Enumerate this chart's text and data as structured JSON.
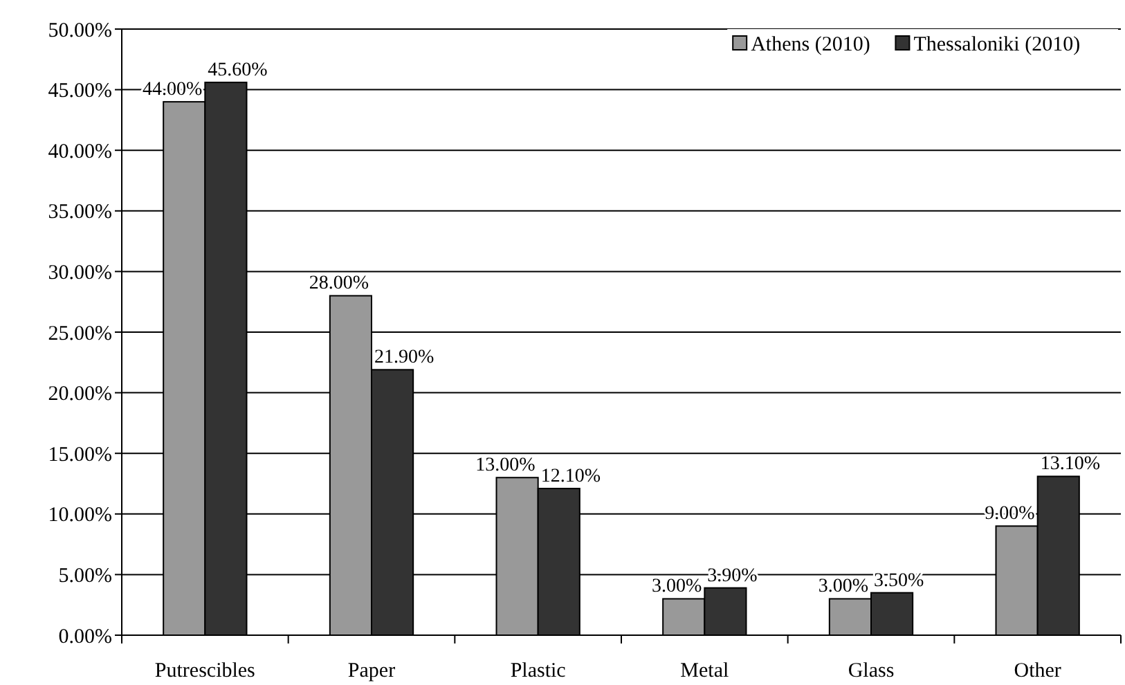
{
  "chart_data": {
    "type": "bar",
    "categories": [
      "Putrescibles",
      "Paper",
      "Plastic",
      "Metal",
      "Glass",
      "Other"
    ],
    "series": [
      {
        "name": "Athens (2010)",
        "color": "#999999",
        "values": [
          44,
          28,
          13,
          3,
          3,
          9
        ],
        "value_labels": [
          "44.00%",
          "28.00%",
          "13.00%",
          "3.00%",
          "3.00%",
          "9.00%"
        ]
      },
      {
        "name": "Thessaloniki (2010)",
        "color": "#333333",
        "values": [
          45.6,
          21.9,
          12.1,
          3.9,
          3.5,
          13.1
        ],
        "value_labels": [
          "45.60%",
          "21.90%",
          "12.10%",
          "3.90%",
          "3.50%",
          "13.10%"
        ]
      }
    ],
    "ylim": [
      0,
      50
    ],
    "yticks": [
      {
        "value": 0,
        "label": "0.00%"
      },
      {
        "value": 5,
        "label": "5.00%"
      },
      {
        "value": 10,
        "label": "10.00%"
      },
      {
        "value": 15,
        "label": "15.00%"
      },
      {
        "value": 20,
        "label": "20.00%"
      },
      {
        "value": 25,
        "label": "25.00%"
      },
      {
        "value": 30,
        "label": "30.00%"
      },
      {
        "value": 35,
        "label": "35.00%"
      },
      {
        "value": 40,
        "label": "40.00%"
      },
      {
        "value": 45,
        "label": "45.00%"
      },
      {
        "value": 50,
        "label": "50.00%"
      }
    ],
    "grid": "y",
    "legend": "top right"
  }
}
